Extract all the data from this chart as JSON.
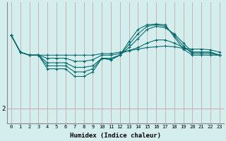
{
  "xlabel": "Humidex (Indice chaleur)",
  "bg_color": "#d4eeed",
  "grid_color_v": "#c8a8a8",
  "grid_color_h": "#c8a8a8",
  "line_color": "#006868",
  "xlim": [
    -0.5,
    23.5
  ],
  "ylim": [
    1.0,
    9.0
  ],
  "yticks": [
    2
  ],
  "xticks": [
    0,
    1,
    2,
    3,
    4,
    5,
    6,
    7,
    8,
    9,
    10,
    11,
    12,
    13,
    14,
    15,
    16,
    17,
    18,
    19,
    20,
    21,
    22,
    23
  ],
  "lines": [
    {
      "x": [
        0,
        1,
        2,
        3,
        4,
        5,
        6,
        7,
        8,
        9,
        10,
        11,
        12,
        13,
        14,
        15,
        16,
        17,
        18,
        19,
        20,
        21,
        22,
        23
      ],
      "y": [
        6.8,
        5.7,
        5.5,
        5.5,
        5.5,
        5.5,
        5.5,
        5.5,
        5.5,
        5.5,
        5.6,
        5.6,
        5.7,
        5.8,
        5.9,
        6.0,
        6.05,
        6.1,
        6.05,
        5.95,
        5.9,
        5.9,
        5.85,
        5.7
      ]
    },
    {
      "x": [
        0,
        1,
        2,
        3,
        4,
        5,
        6,
        7,
        8,
        9,
        10,
        11,
        12,
        13,
        14,
        15,
        16,
        17,
        18,
        19,
        20,
        21,
        22,
        23
      ],
      "y": [
        6.8,
        5.7,
        5.5,
        5.5,
        5.3,
        5.3,
        5.3,
        5.1,
        5.1,
        5.2,
        5.5,
        5.5,
        5.6,
        5.8,
        6.0,
        6.3,
        6.5,
        6.5,
        6.3,
        6.0,
        5.7,
        5.7,
        5.7,
        5.5
      ]
    },
    {
      "x": [
        0,
        1,
        2,
        3,
        4,
        5,
        6,
        7,
        8,
        9,
        10,
        11,
        12,
        13,
        14,
        15,
        16,
        17,
        18,
        19,
        20,
        21,
        22,
        23
      ],
      "y": [
        6.8,
        5.7,
        5.5,
        5.5,
        5.0,
        5.0,
        5.0,
        4.7,
        4.7,
        4.8,
        5.3,
        5.3,
        5.5,
        6.0,
        6.6,
        7.2,
        7.4,
        7.3,
        6.9,
        6.3,
        5.7,
        5.7,
        5.7,
        5.5
      ]
    },
    {
      "x": [
        0,
        1,
        2,
        3,
        4,
        5,
        6,
        7,
        8,
        9,
        10,
        11,
        12,
        13,
        14,
        15,
        16,
        17,
        18,
        19,
        20,
        21,
        22,
        23
      ],
      "y": [
        6.8,
        5.7,
        5.5,
        5.5,
        4.8,
        4.8,
        4.8,
        4.4,
        4.4,
        4.6,
        5.3,
        5.2,
        5.5,
        6.2,
        6.9,
        7.4,
        7.5,
        7.4,
        6.8,
        6.1,
        5.6,
        5.6,
        5.6,
        5.5
      ]
    },
    {
      "x": [
        0,
        1,
        2,
        3,
        4,
        5,
        6,
        7,
        8,
        9,
        10,
        11,
        12,
        13,
        14,
        15,
        16,
        17,
        18,
        19,
        20,
        21,
        22,
        23
      ],
      "y": [
        6.8,
        5.7,
        5.5,
        5.5,
        4.6,
        4.6,
        4.6,
        4.1,
        4.1,
        4.4,
        5.3,
        5.2,
        5.5,
        6.4,
        7.2,
        7.5,
        7.55,
        7.5,
        6.7,
        5.9,
        5.5,
        5.5,
        5.5,
        5.5
      ]
    }
  ]
}
